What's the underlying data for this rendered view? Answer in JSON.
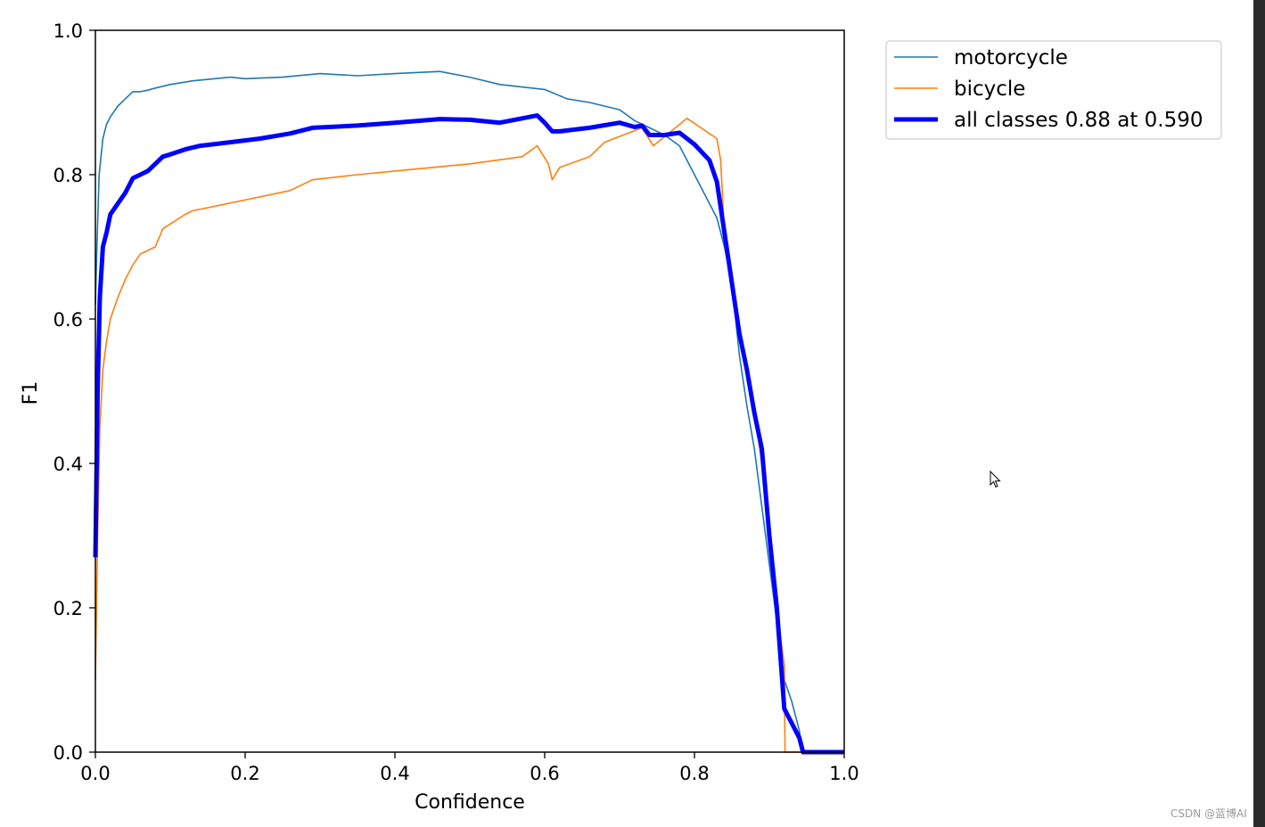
{
  "chart_data": {
    "type": "line",
    "xlabel": "Confidence",
    "ylabel": "F1",
    "xlim": [
      0.0,
      1.0
    ],
    "ylim": [
      0.0,
      1.0
    ],
    "xticks": [
      "0.0",
      "0.2",
      "0.4",
      "0.6",
      "0.8",
      "1.0"
    ],
    "yticks": [
      "0.0",
      "0.2",
      "0.4",
      "0.6",
      "0.8",
      "1.0"
    ],
    "legend_position": "outside-top-right",
    "grid": false,
    "series": [
      {
        "name": "motorcycle",
        "color": "#1f77b4",
        "x": [
          0.0,
          0.002,
          0.005,
          0.01,
          0.015,
          0.02,
          0.03,
          0.04,
          0.05,
          0.06,
          0.07,
          0.08,
          0.1,
          0.13,
          0.18,
          0.2,
          0.25,
          0.3,
          0.35,
          0.4,
          0.46,
          0.5,
          0.54,
          0.6,
          0.63,
          0.66,
          0.7,
          0.72,
          0.74,
          0.76,
          0.78,
          0.8,
          0.82,
          0.83,
          0.84,
          0.85,
          0.86,
          0.87,
          0.88,
          0.89,
          0.9,
          0.91,
          0.92,
          0.93,
          0.94,
          0.945,
          1.0
        ],
        "y": [
          0.62,
          0.7,
          0.8,
          0.85,
          0.87,
          0.88,
          0.895,
          0.905,
          0.915,
          0.915,
          0.917,
          0.92,
          0.925,
          0.93,
          0.935,
          0.933,
          0.935,
          0.94,
          0.937,
          0.94,
          0.943,
          0.935,
          0.925,
          0.918,
          0.905,
          0.9,
          0.89,
          0.875,
          0.865,
          0.855,
          0.84,
          0.8,
          0.76,
          0.74,
          0.7,
          0.65,
          0.55,
          0.48,
          0.42,
          0.34,
          0.26,
          0.18,
          0.1,
          0.07,
          0.03,
          0.0,
          0.0
        ]
      },
      {
        "name": "bicycle",
        "color": "#ff7f0e",
        "x": [
          0.0,
          0.003,
          0.006,
          0.01,
          0.015,
          0.02,
          0.03,
          0.04,
          0.05,
          0.06,
          0.08,
          0.09,
          0.12,
          0.13,
          0.2,
          0.26,
          0.29,
          0.35,
          0.4,
          0.45,
          0.5,
          0.57,
          0.59,
          0.605,
          0.61,
          0.62,
          0.66,
          0.68,
          0.73,
          0.745,
          0.79,
          0.83,
          0.835,
          0.84,
          0.85,
          0.86,
          0.87,
          0.88,
          0.89,
          0.9,
          0.91,
          0.92,
          0.921,
          1.0
        ],
        "y": [
          0.1,
          0.3,
          0.45,
          0.53,
          0.57,
          0.6,
          0.63,
          0.655,
          0.675,
          0.69,
          0.7,
          0.725,
          0.745,
          0.75,
          0.765,
          0.778,
          0.793,
          0.8,
          0.805,
          0.81,
          0.815,
          0.825,
          0.84,
          0.815,
          0.793,
          0.81,
          0.825,
          0.845,
          0.865,
          0.84,
          0.878,
          0.85,
          0.82,
          0.72,
          0.65,
          0.58,
          0.53,
          0.47,
          0.4,
          0.3,
          0.2,
          0.12,
          0.0,
          0.0
        ]
      },
      {
        "name": "all classes 0.88 at 0.590",
        "color": "#0000ff",
        "thick": true,
        "x": [
          0.0,
          0.003,
          0.006,
          0.01,
          0.015,
          0.02,
          0.03,
          0.04,
          0.05,
          0.06,
          0.07,
          0.08,
          0.09,
          0.1,
          0.12,
          0.14,
          0.18,
          0.22,
          0.26,
          0.29,
          0.35,
          0.4,
          0.46,
          0.5,
          0.54,
          0.59,
          0.6,
          0.61,
          0.62,
          0.66,
          0.7,
          0.72,
          0.73,
          0.74,
          0.76,
          0.78,
          0.8,
          0.82,
          0.83,
          0.84,
          0.85,
          0.86,
          0.87,
          0.88,
          0.89,
          0.9,
          0.91,
          0.92,
          0.93,
          0.94,
          0.945,
          1.0
        ],
        "y": [
          0.27,
          0.5,
          0.63,
          0.7,
          0.72,
          0.745,
          0.76,
          0.775,
          0.795,
          0.8,
          0.805,
          0.815,
          0.825,
          0.828,
          0.835,
          0.84,
          0.845,
          0.85,
          0.857,
          0.865,
          0.868,
          0.872,
          0.877,
          0.876,
          0.872,
          0.882,
          0.872,
          0.86,
          0.86,
          0.865,
          0.872,
          0.866,
          0.868,
          0.855,
          0.855,
          0.858,
          0.842,
          0.82,
          0.79,
          0.72,
          0.65,
          0.58,
          0.53,
          0.47,
          0.42,
          0.3,
          0.2,
          0.06,
          0.04,
          0.02,
          0.0,
          0.0
        ]
      }
    ]
  },
  "watermark": "CSDN @蓝博AI"
}
